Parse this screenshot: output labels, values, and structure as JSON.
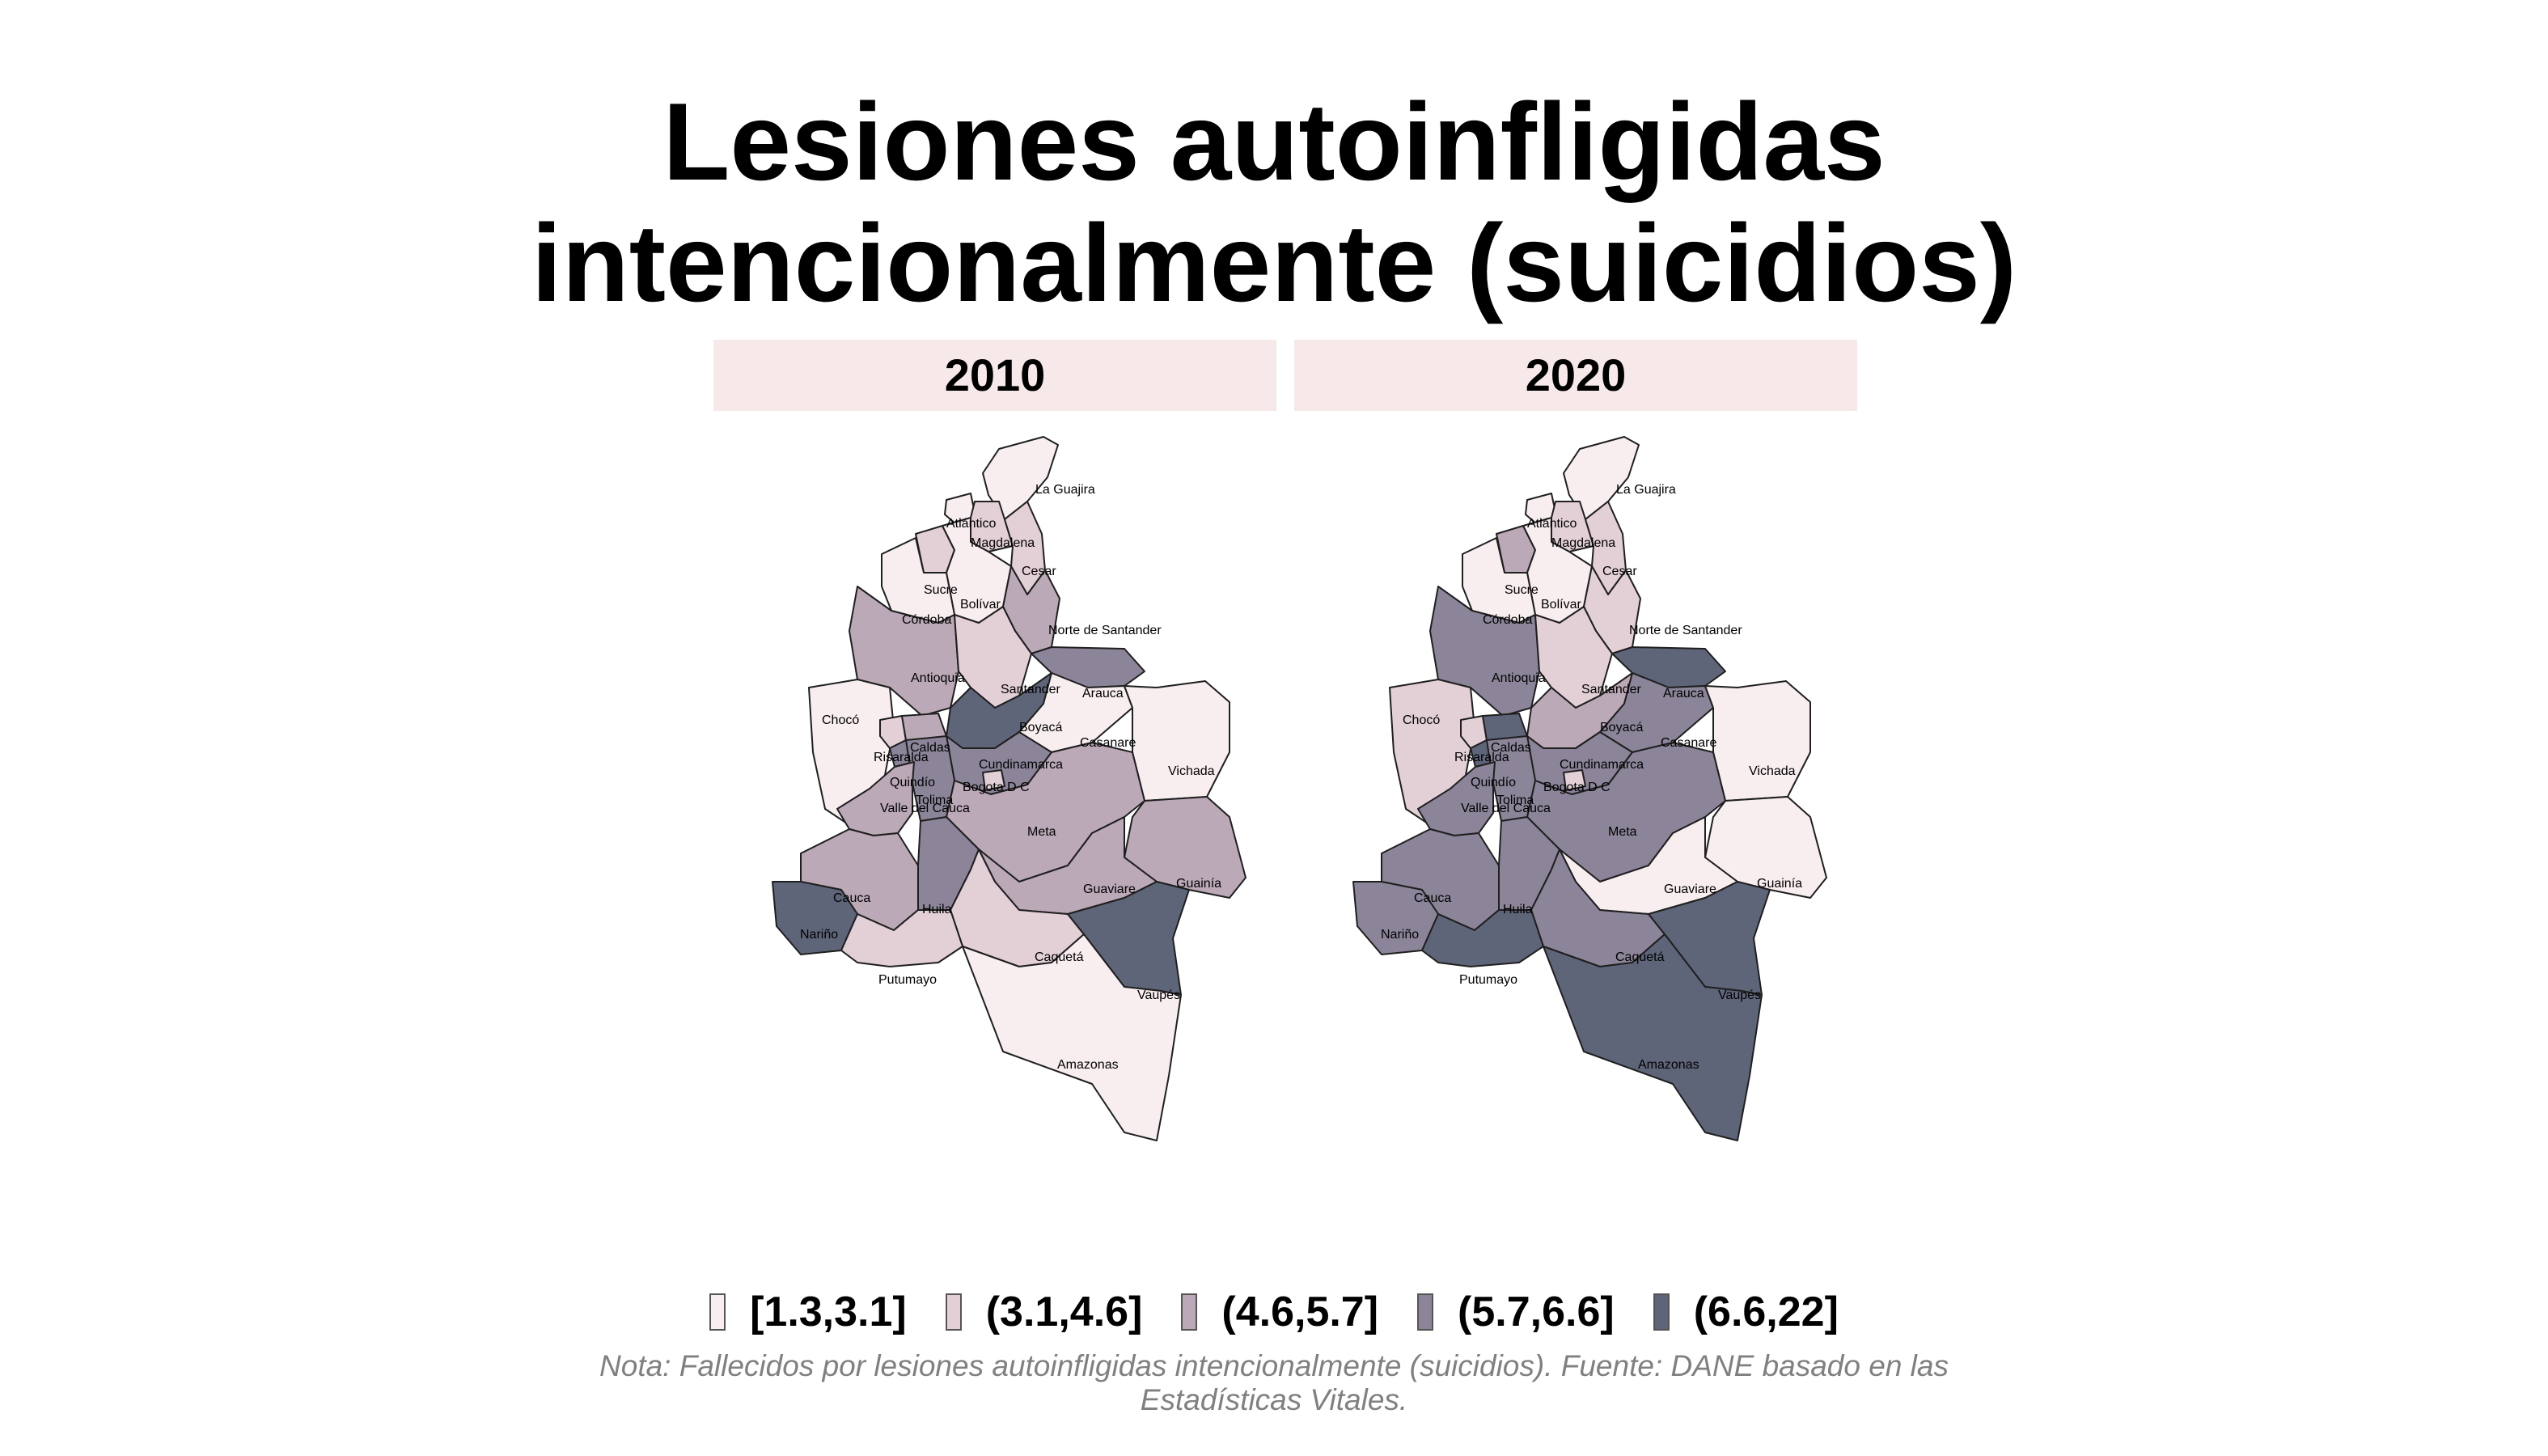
{
  "title_line1": "Lesiones autoinfligidas",
  "title_line2": "intencionalmente (suicidios)",
  "panels": [
    {
      "year": "2010",
      "classes": {
        "La Guajira": 1,
        "Atlántico": 1,
        "Magdalena": 2,
        "Cesar": 2,
        "Sucre": 2,
        "Bolívar": 1,
        "Córdoba": 1,
        "Norte de Santander": 3,
        "Antioquia": 3,
        "Santander": 2,
        "Arauca": 4,
        "Chocó": 1,
        "Risaralda": 2,
        "Caldas": 3,
        "Boyacá": 5,
        "Casanare": 1,
        "Vichada": 1,
        "Cundinamarca": 4,
        "Bogota D C": 2,
        "Quindío": 4,
        "Tolima": 4,
        "Valle del Cauca": 3,
        "Meta": 3,
        "Guainía": 3,
        "Huila": 4,
        "Cauca": 3,
        "Nariño": 5,
        "Guaviare": 3,
        "Caquetá": 2,
        "Vaupés": 5,
        "Putumayo": 2,
        "Amazonas": 1
      }
    },
    {
      "year": "2020",
      "classes": {
        "La Guajira": 1,
        "Atlántico": 1,
        "Magdalena": 2,
        "Cesar": 2,
        "Sucre": 3,
        "Bolívar": 1,
        "Córdoba": 1,
        "Norte de Santander": 2,
        "Antioquia": 4,
        "Santander": 2,
        "Arauca": 5,
        "Chocó": 2,
        "Risaralda": 2,
        "Caldas": 5,
        "Boyacá": 3,
        "Casanare": 4,
        "Vichada": 1,
        "Cundinamarca": 4,
        "Bogota D C": 2,
        "Quindío": 5,
        "Tolima": 4,
        "Valle del Cauca": 4,
        "Meta": 4,
        "Guainía": 1,
        "Huila": 4,
        "Cauca": 4,
        "Nariño": 4,
        "Guaviare": 1,
        "Caquetá": 4,
        "Vaupés": 5,
        "Putumayo": 5,
        "Amazonas": 5
      }
    }
  ],
  "legend": [
    {
      "label": "[1.3,3.1]",
      "color": "#f8eef0"
    },
    {
      "label": "(3.1,4.6]",
      "color": "#e2d0d6"
    },
    {
      "label": "(4.6,5.7]",
      "color": "#bba9b7"
    },
    {
      "label": "(5.7,6.6]",
      "color": "#8c8498"
    },
    {
      "label": "(6.6,22]",
      "color": "#5e6579"
    }
  ],
  "note": "Nota: Fallecidos por lesiones autoinfligidas intencionalmente (suicidios). Fuente: DANE basado en las Estadísticas Vitales."
}
